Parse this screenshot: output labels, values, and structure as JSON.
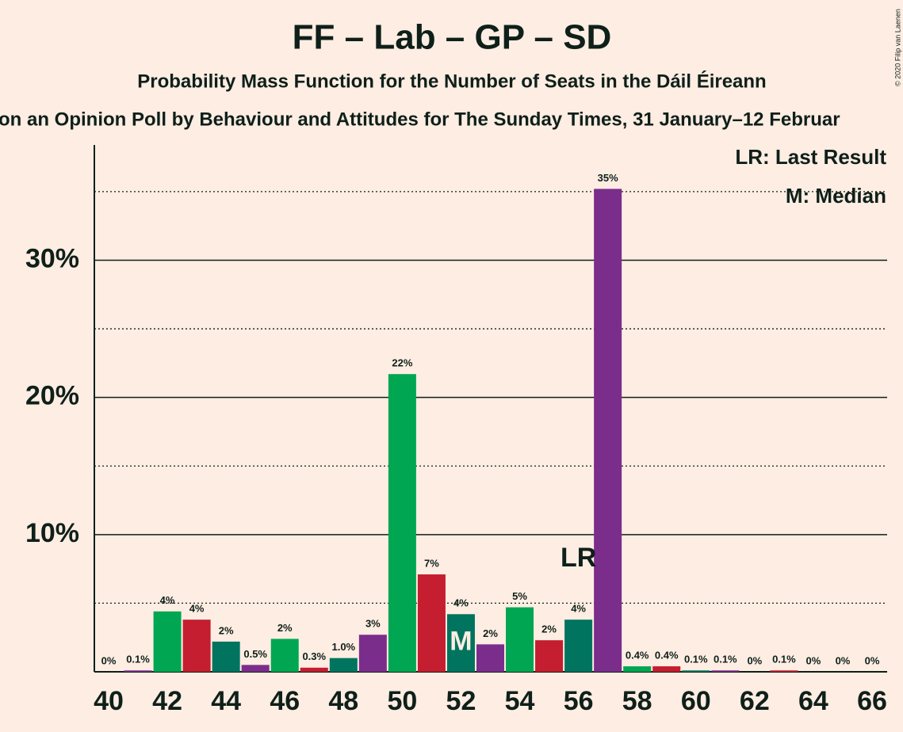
{
  "chart_data": {
    "type": "bar",
    "title": "FF – Lab – GP – SD",
    "subtitle": "Probability Mass Function for the Number of Seats in the Dáil Éireann",
    "source": "on an Opinion Poll by Behaviour and Attitudes for The Sunday Times, 31 January–12 Februar",
    "copyright": "© 2020 Filip van Laenen",
    "legend": [
      "LR: Last Result",
      "M: Median"
    ],
    "categories": [
      40,
      null,
      42,
      null,
      44,
      null,
      46,
      null,
      48,
      null,
      50,
      null,
      52,
      null,
      54,
      null,
      56,
      null,
      58,
      null,
      60,
      null,
      62,
      null,
      64,
      null,
      66
    ],
    "values": [
      0,
      0.1,
      4.4,
      3.8,
      2.2,
      0.5,
      2.4,
      0.3,
      1.0,
      2.7,
      21.7,
      7.1,
      4.2,
      2.0,
      4.7,
      2.3,
      3.8,
      35.2,
      0.4,
      0.4,
      0.1,
      0.1,
      0,
      0.1,
      0,
      0,
      0
    ],
    "value_labels": [
      "0%",
      "0.1%",
      "4%",
      "4%",
      "2%",
      "0.5%",
      "2%",
      "0.3%",
      "1.0%",
      "3%",
      "22%",
      "7%",
      "4%",
      "2%",
      "5%",
      "2%",
      "4%",
      "35%",
      "0.4%",
      "0.4%",
      "0.1%",
      "0.1%",
      "0%",
      "0.1%",
      "0%",
      "0%",
      "0%"
    ],
    "colors": [
      "#00745e",
      "#7b2d8b",
      "#00a651",
      "#c41e30",
      "#00745e",
      "#7b2d8b",
      "#00a651",
      "#c41e30",
      "#00745e",
      "#7b2d8b",
      "#00a651",
      "#c41e30",
      "#00745e",
      "#7b2d8b",
      "#00a651",
      "#c41e30",
      "#00745e",
      "#7b2d8b",
      "#00a651",
      "#c41e30",
      "#00745e",
      "#7b2d8b",
      "#00a651",
      "#c41e30",
      "#00745e",
      "#7b2d8b",
      "#00a651"
    ],
    "ylim": [
      0,
      38.4
    ],
    "yticks": [
      {
        "value": 10,
        "label": "10%"
      },
      {
        "value": 20,
        "label": "20%"
      },
      {
        "value": 30,
        "label": "30%"
      }
    ],
    "minor_yticks": [
      5,
      15,
      25,
      35
    ],
    "grid": true,
    "annotations": [
      {
        "label": "LR",
        "index": 16
      },
      {
        "label": "M",
        "index": 12
      }
    ]
  }
}
